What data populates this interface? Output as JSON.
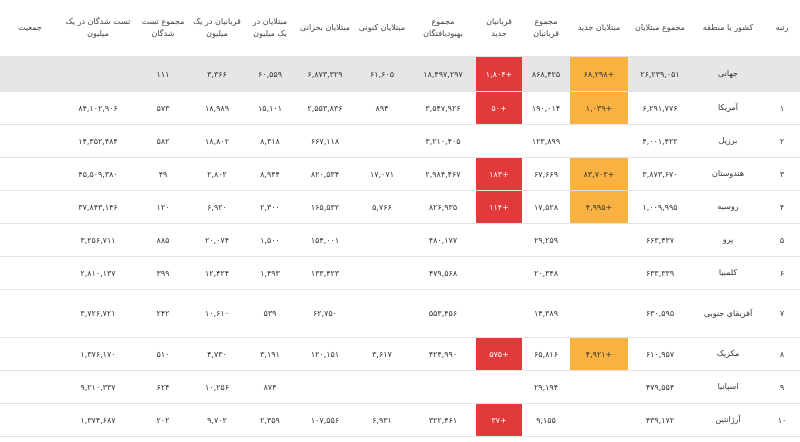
{
  "header": [
    "رتبه",
    "کشور یا منطقه",
    "مجموع مبتلایان",
    "مبتلایان جدید",
    "مجموع قربانیان",
    "قربانیان جدید",
    "مجموع بهبودیافتگان",
    "مبتلایان کنونی",
    "مبتلایان بحرانی",
    "مبتلایان در یک میلیون",
    "قربانیان در یک میلیون",
    "مجموع تست شدگان",
    "تست شدگان در یک میلیون",
    "جمعیت"
  ],
  "rows": [
    [
      null,
      "جهانی",
      "۲۶,۲۳۹,۰۵۱",
      "+۶۸,۲۹۸",
      "۸۶۸,۴۲۵",
      "+۱,۸۰۴",
      "۱۸,۴۹۷,۲۹۷",
      "۶۱,۶۰۵",
      "۶,۸۷۳,۳۲۹",
      "۶۰,۵۵۹",
      "۳,۳۶۶",
      "۱۱۱",
      null,
      null
    ],
    [
      "۱",
      "آمریکا",
      "۶,۲۹۱,۷۷۶",
      "+۱,۰۳۹",
      "۱۹۰,۰۱۴",
      "+۵۰",
      "۳,۵۴۷,۹۲۶",
      "۸۹۴",
      "۲,۵۵۳,۸۳۶",
      "۱۵,۱۰۱",
      "۱۸,۹۸۹",
      "۵۷۳",
      "۸۴,۱۰۲,۹۰۶",
      null
    ],
    [
      "۲",
      "برزیل",
      "۴,۰۰۱,۴۲۲",
      null,
      "۱۲۳,۸۹۹",
      null,
      "۳,۲۱۰,۴۰۵",
      null,
      "۶۶۷,۱۱۸",
      "۸,۳۱۸",
      "۱۸,۸۰۲",
      "۵۸۲",
      "۱۴,۳۵۲,۴۸۴",
      null
    ],
    [
      "۳",
      "هندوستان",
      "۳,۸۷۳,۶۷۰",
      "+۸۳,۷۰۳",
      "۶۷,۶۶۹",
      "+۱۸۳",
      "۲,۹۸۴,۴۶۷",
      "۱۷,۰۷۱",
      "۸۲۰,۵۳۴",
      "۸,۹۴۴",
      "۲,۸۰۲",
      "۴۹",
      "۴۵,۵۰۹,۳۸۰",
      null
    ],
    [
      "۴",
      "روسیه",
      "۱,۰۰۹,۹۹۵",
      "+۴,۹۹۵",
      "۱۷,۵۲۸",
      "+۱۱۴",
      "۸۲۶,۹۳۵",
      "۵,۷۶۶",
      "۱۶۵,۵۳۲",
      "۲,۳۰۰",
      "۶,۹۲۰",
      "۱۲۰",
      "۳۷,۸۴۳,۱۴۶",
      null
    ],
    [
      "۵",
      "پرو",
      "۶۶۳,۴۳۷",
      null,
      "۲۹,۲۵۹",
      null,
      "۴۸۰,۱۷۷",
      null,
      "۱۵۴,۰۰۱",
      "۱,۵۰۰",
      "۲۰,۰۷۴",
      "۸۸۵",
      "۳,۲۵۶,۷۱۱",
      null
    ],
    [
      "۶",
      "کلمبیا",
      "۶۳۳,۳۳۹",
      null,
      "۲۰,۳۴۸",
      null,
      "۴۷۹,۵۶۸",
      null,
      "۱۳۳,۴۲۳",
      "۱,۴۹۳",
      "۱۲,۴۲۴",
      "۳۹۹",
      "۲,۸۱۰,۱۳۷",
      null
    ],
    [
      "۷",
      "آفریقای جنوبی",
      "۶۳۰,۵۹۵",
      null,
      "۱۴,۳۸۹",
      null,
      "۵۵۳,۴۵۶",
      null,
      "۶۲,۷۵۰",
      "۵۳۹",
      "۱۰,۶۱۰",
      "۲۴۲",
      "۳,۷۲۶,۷۲۱",
      null
    ],
    [
      "۸",
      "مکزیک",
      "۶۱۰,۹۵۷",
      "+۴,۹۲۱",
      "۶۵,۸۱۶",
      "+۵۷۵",
      "۴۲۴,۹۹۰",
      "۳,۶۱۷",
      "۱۲۰,۱۵۱",
      "۳,۱۹۱",
      "۴,۷۳۰",
      "۵۱۰",
      "۱,۳۷۶,۱۷۰",
      null
    ],
    [
      "۹",
      "اسپانیا",
      "۴۷۹,۵۵۴",
      null,
      "۲۹,۱۹۴",
      null,
      null,
      null,
      null,
      "۸۷۴",
      "۱۰,۲۵۶",
      "۶۲۴",
      "۹,۲۱۰,۳۳۷",
      null
    ],
    [
      "۱۰",
      "آرژانتین",
      "۴۳۹,۱۷۲",
      null,
      "۹,۱۵۵",
      "+۳۷",
      "۳۲۲,۴۶۱",
      "۶,۹۳۱",
      "۱۰۷,۵۵۶",
      "۲,۳۵۹",
      "۹,۷۰۲",
      "۲۰۲",
      "۱,۳۷۴,۶۸۷",
      null
    ]
  ]
}
